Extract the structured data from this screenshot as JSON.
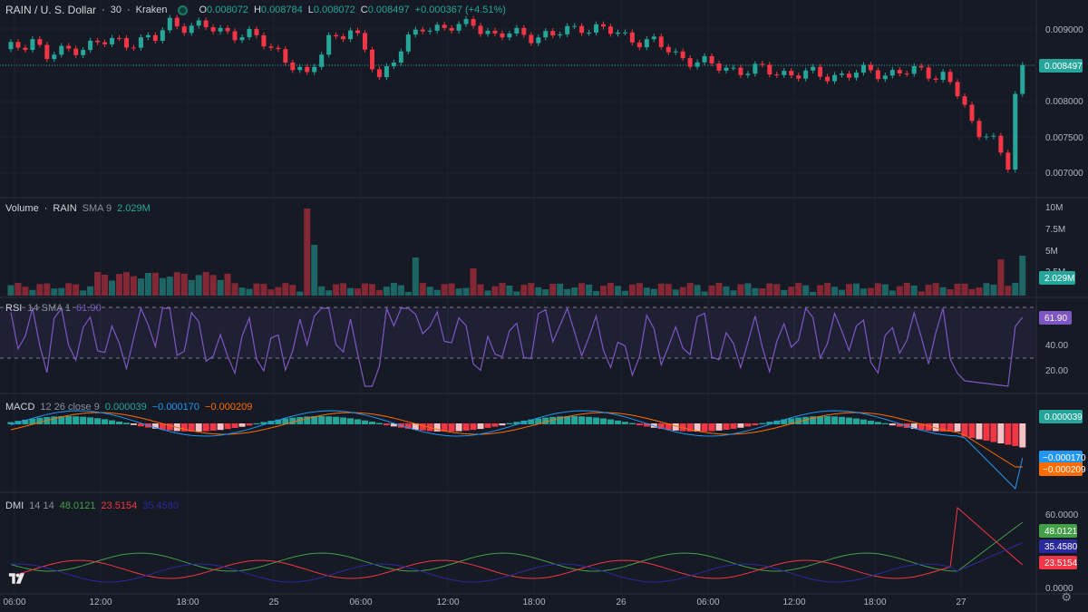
{
  "header": {
    "symbol": "RAIN / U. S. Dollar",
    "interval": "30",
    "exchange": "Kraken",
    "separator": "·",
    "o_label": "O",
    "o_value": "0.008072",
    "h_label": "H",
    "h_value": "0.008784",
    "l_label": "L",
    "l_value": "0.008072",
    "c_label": "C",
    "c_value": "0.008497",
    "change": "+0.000367 (+4.51%)"
  },
  "price_axis": {
    "ticks": [
      "0.009000",
      "0.008000",
      "0.007500",
      "0.007000"
    ],
    "current": "0.008497"
  },
  "volume": {
    "label": "Volume",
    "symbol": "RAIN",
    "sma_label": "SMA 9",
    "value": "2.029M",
    "ticks": [
      "10M",
      "7.5M",
      "5M",
      "2.5M"
    ],
    "current": "2.029M"
  },
  "rsi": {
    "label": "RSI",
    "params": "14 SMA 1",
    "value": "61.90",
    "ticks": [
      "40.00",
      "20.00"
    ],
    "current": "61.90",
    "color": "#7e57c2"
  },
  "macd": {
    "label": "MACD",
    "params": "12 26 close 9",
    "hist_value": "0.000039",
    "macd_value": "−0.000170",
    "signal_value": "−0.000209",
    "badge_hist": "0.000039",
    "badge_macd": "−0.000170",
    "badge_signal": "−0.000209",
    "macd_color": "#2196f3",
    "signal_color": "#ff6d00"
  },
  "dmi": {
    "label": "DMI",
    "params": "14 14",
    "plus_value": "48.0121",
    "minus_value": "23.5154",
    "adx_value": "35.4580",
    "ticks": [
      "60.0000",
      "0.0000"
    ],
    "badge_plus": "48.0121",
    "badge_adx": "35.4580",
    "badge_minus": "23.5154",
    "plus_color": "#43a047",
    "minus_color": "#f23645",
    "adx_color": "#2a2a9c"
  },
  "time_axis": [
    "06:00",
    "12:00",
    "18:00",
    "25",
    "06:00",
    "12:00",
    "18:00",
    "26",
    "06:00",
    "12:00",
    "18:00",
    "27"
  ],
  "colors": {
    "up": "#26a69a",
    "down": "#f23645",
    "background": "#161a25"
  },
  "icons": {
    "logo": "tradingview-logo",
    "settings": "gear-icon",
    "status": "status-dot"
  }
}
